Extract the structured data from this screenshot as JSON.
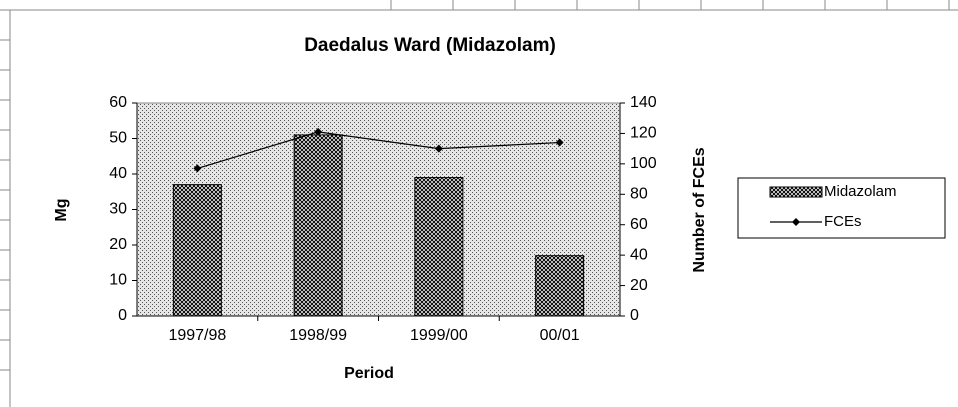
{
  "chart_data": {
    "type": "bar",
    "title": "Daedalus Ward (Midazolam)",
    "x_label": "Period",
    "y_label": "Mg",
    "y2_label": "Number of FCEs",
    "categories": [
      "1997/98",
      "1998/99",
      "1999/00",
      "00/01"
    ],
    "series": [
      {
        "name": "Midazolam",
        "type": "bar",
        "color": "#000000",
        "values": [
          37,
          51,
          39,
          17
        ]
      },
      {
        "name": "FCEs",
        "type": "line",
        "axis": "y2",
        "color": "#000000",
        "values": [
          97,
          121,
          110,
          114
        ]
      }
    ],
    "ylim": [
      0,
      60
    ],
    "yticks": [
      0,
      10,
      20,
      30,
      40,
      50,
      60
    ],
    "y2lim": [
      0,
      140
    ],
    "y2ticks": [
      0,
      20,
      40,
      60,
      80,
      100,
      120,
      140
    ],
    "legend": "right"
  }
}
